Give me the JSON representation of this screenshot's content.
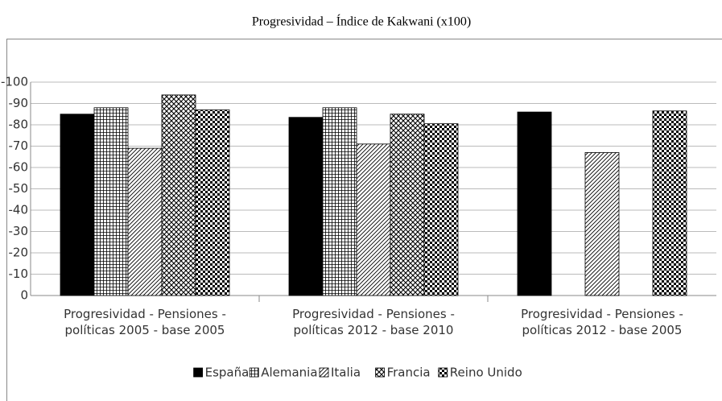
{
  "chart_data": {
    "type": "bar",
    "title": "Progresividad – Índice de Kakwani (x100)",
    "categories": [
      "Progresividad - Pensiones - políticas 2005 - base 2005",
      "Progresividad - Pensiones - políticas 2012 - base 2010",
      "Progresividad - Pensiones - políticas 2012 - base 2005"
    ],
    "series": [
      {
        "name": "España",
        "color": "#000000",
        "pattern": "solid",
        "values": [
          -85,
          -83.5,
          -86
        ]
      },
      {
        "name": "Alemania",
        "color": "#000000",
        "pattern": "grid",
        "values": [
          -88,
          -88,
          null
        ]
      },
      {
        "name": "Italia",
        "color": "#000000",
        "pattern": "hatch",
        "values": [
          -69,
          -71,
          -67
        ]
      },
      {
        "name": "Francia",
        "color": "#000000",
        "pattern": "diamond",
        "values": [
          -94,
          -85,
          null
        ]
      },
      {
        "name": "Reino Unido",
        "color": "#000000",
        "pattern": "check",
        "values": [
          -87,
          -80.5,
          -86.5
        ]
      }
    ],
    "ylim": [
      0,
      -100
    ],
    "yticks": [
      0,
      -10,
      -20,
      -30,
      -40,
      -50,
      -60,
      -70,
      -80,
      -90,
      -100
    ],
    "grid": true,
    "legend": "bottom"
  }
}
